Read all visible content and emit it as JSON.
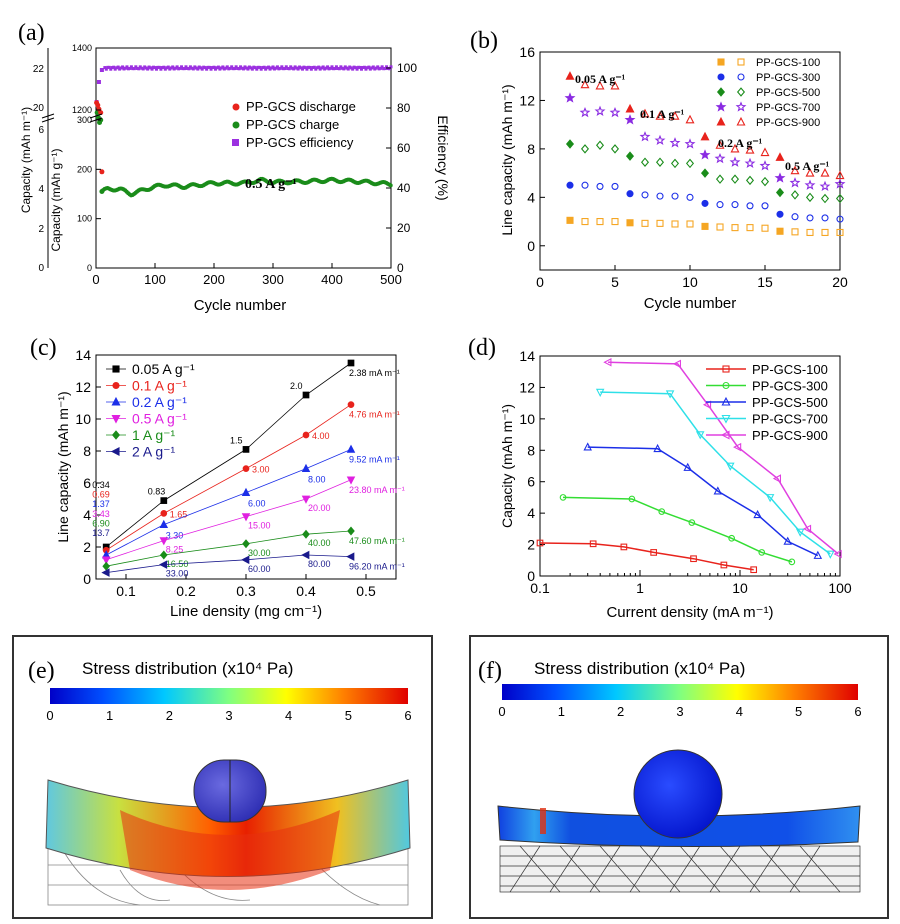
{
  "chart_data": [
    {
      "panel": "(a)",
      "type": "scatter",
      "xlabel": "Cycle number",
      "ylabel": "Capacity (mAh g⁻¹)",
      "ylabel_inner": "Capacity (mAh m⁻¹)",
      "ylabel_right": "Efficiency (%)",
      "xlim": [
        0,
        500
      ],
      "xticks": [
        "0",
        "100",
        "200",
        "300",
        "400",
        "500"
      ],
      "yticks_left": [
        "0",
        "100",
        "200",
        "300",
        "1200",
        "1400"
      ],
      "yticks_inner": [
        "0",
        "2",
        "4",
        "6",
        "20",
        "22"
      ],
      "yticks_right": [
        "0",
        "20",
        "40",
        "60",
        "80",
        "100"
      ],
      "annotation": "0.5 A g⁻¹",
      "legend": [
        "PP-GCS discharge",
        "PP-GCS charge",
        "PP-GCS efficiency"
      ],
      "colors": [
        "#e8231c",
        "#1a8c1a",
        "#9b30e0"
      ],
      "efficiency_x": [
        1,
        5,
        10,
        15,
        20,
        40,
        60,
        80,
        100,
        120,
        150,
        200,
        250,
        300,
        350,
        400,
        450,
        500
      ],
      "efficiency_y": [
        83,
        93,
        99,
        100,
        100,
        100,
        99.5,
        100,
        100.5,
        100,
        100,
        100,
        100,
        100,
        100,
        100,
        100,
        100
      ],
      "discharge_x": [
        1,
        3,
        5,
        8,
        10
      ],
      "discharge_y": [
        335,
        330,
        322,
        315,
        195
      ],
      "charge_x": [
        2,
        4,
        6,
        8,
        10,
        20,
        40,
        60,
        80,
        100,
        120,
        150,
        200,
        250,
        280,
        300,
        350,
        400,
        450,
        500
      ],
      "charge_y": [
        315,
        305,
        295,
        300,
        155,
        160,
        160,
        150,
        158,
        165,
        168,
        165,
        172,
        172,
        178,
        174,
        175,
        178,
        175,
        170
      ]
    },
    {
      "panel": "(b)",
      "type": "scatter",
      "xlabel": "Cycle number",
      "ylabel": "Line capacity (mAh m⁻¹)",
      "xlim": [
        0,
        20
      ],
      "ylim": [
        -2,
        16
      ],
      "xticks": [
        "0",
        "5",
        "10",
        "15",
        "20"
      ],
      "yticks": [
        "0",
        "4",
        "8",
        "12",
        "16"
      ],
      "annotations": [
        "0.05 A g⁻¹",
        "0.1 A g⁻¹",
        "0.2 A g⁻¹",
        "0.5 A g⁻¹"
      ],
      "x": [
        2,
        3,
        4,
        5,
        6,
        7,
        8,
        9,
        10,
        11,
        12,
        13,
        14,
        15,
        16,
        17,
        18,
        19,
        20
      ],
      "series": [
        {
          "name": "PP-GCS-100",
          "color": "#f5a623",
          "marker": "square",
          "values": [
            2.1,
            2.0,
            2.0,
            2.0,
            1.9,
            1.85,
            1.85,
            1.8,
            1.8,
            1.6,
            1.55,
            1.5,
            1.5,
            1.45,
            1.2,
            1.15,
            1.1,
            1.1,
            1.1
          ]
        },
        {
          "name": "PP-GCS-300",
          "color": "#1c2fe8",
          "marker": "circle",
          "values": [
            5.0,
            5.0,
            4.9,
            4.9,
            4.3,
            4.2,
            4.1,
            4.1,
            4.0,
            3.5,
            3.4,
            3.4,
            3.3,
            3.3,
            2.6,
            2.4,
            2.3,
            2.3,
            2.2
          ]
        },
        {
          "name": "PP-GCS-500",
          "color": "#1a8c1a",
          "marker": "diamond",
          "values": [
            8.4,
            8.0,
            8.3,
            8.0,
            7.4,
            6.9,
            6.9,
            6.8,
            6.8,
            6.0,
            5.5,
            5.5,
            5.4,
            5.3,
            4.4,
            4.2,
            4.0,
            3.9,
            3.9
          ]
        },
        {
          "name": "PP-GCS-700",
          "color": "#8a2be2",
          "marker": "star",
          "values": [
            12.2,
            11.0,
            11.1,
            11.0,
            10.4,
            9.0,
            8.7,
            8.5,
            8.4,
            7.5,
            7.2,
            6.9,
            6.8,
            6.6,
            5.6,
            5.2,
            5.0,
            4.9,
            5.1
          ]
        },
        {
          "name": "PP-GCS-900",
          "color": "#e8231c",
          "marker": "triangle",
          "values": [
            14.0,
            13.3,
            13.2,
            13.2,
            11.3,
            10.9,
            10.7,
            10.7,
            10.4,
            9.0,
            8.3,
            8.0,
            7.9,
            7.7,
            7.3,
            6.2,
            6.0,
            6.0,
            5.8
          ]
        }
      ]
    },
    {
      "panel": "(c)",
      "type": "line",
      "xlabel": "Line density (mg cm⁻¹)",
      "ylabel": "Line capacity (mAh m⁻¹)",
      "xlim": [
        0.05,
        0.55
      ],
      "ylim": [
        0,
        14
      ],
      "xticks": [
        "0.1",
        "0.2",
        "0.3",
        "0.4",
        "0.5"
      ],
      "yticks": [
        "0",
        "2",
        "4",
        "6",
        "8",
        "10",
        "12",
        "14"
      ],
      "x": [
        0.067,
        0.163,
        0.3,
        0.4,
        0.475
      ],
      "series": [
        {
          "name": "0.05 A g⁻¹",
          "color": "#000000",
          "marker": "square",
          "values": [
            2.0,
            4.9,
            8.1,
            11.5,
            13.5
          ],
          "labels": [
            "0.34",
            "0.83",
            "1.5",
            "2.0",
            "2.38 mA m⁻¹"
          ]
        },
        {
          "name": "0.1 A g⁻¹",
          "color": "#e8231c",
          "marker": "circle",
          "values": [
            1.8,
            4.1,
            6.9,
            9.0,
            10.9
          ],
          "labels": [
            "0.69",
            "1.65",
            "3.00",
            "4.00",
            "4.76 mA m⁻¹"
          ]
        },
        {
          "name": "0.2 A g⁻¹",
          "color": "#1c2fe8",
          "marker": "triangle",
          "values": [
            1.5,
            3.4,
            5.4,
            6.9,
            8.1
          ],
          "labels": [
            "1.37",
            "3.30",
            "6.00",
            "8.00",
            "9.52 mA m⁻¹"
          ]
        },
        {
          "name": "0.5 A g⁻¹",
          "color": "#e020e0",
          "marker": "triangle-down",
          "values": [
            1.2,
            2.4,
            3.9,
            5.0,
            6.2
          ],
          "labels": [
            "3.43",
            "8.25",
            "15.00",
            "20.00",
            "23.80 mA m⁻¹"
          ]
        },
        {
          "name": "1 A g⁻¹",
          "color": "#1a8c1a",
          "marker": "diamond",
          "values": [
            0.8,
            1.5,
            2.2,
            2.8,
            3.0
          ],
          "labels": [
            "6.90",
            "16.50",
            "30.00",
            "40.00",
            "47.60 mA m⁻¹"
          ]
        },
        {
          "name": "2 A g⁻¹",
          "color": "#1a1a8c",
          "marker": "triangle-left",
          "values": [
            0.4,
            0.9,
            1.2,
            1.5,
            1.4
          ],
          "labels": [
            "13.7",
            "33.00",
            "60.00",
            "80.00",
            "96.20 mA m⁻¹"
          ]
        }
      ]
    },
    {
      "panel": "(d)",
      "type": "line",
      "xscale": "log",
      "xlabel": "Current density (mA m⁻¹)",
      "ylabel": "Capacity (mAh m⁻¹)",
      "xlim": [
        0.1,
        100
      ],
      "ylim": [
        0,
        14
      ],
      "xticks": [
        "0.1",
        "1",
        "10",
        "100"
      ],
      "yticks": [
        "0",
        "2",
        "4",
        "6",
        "8",
        "10",
        "12",
        "14"
      ],
      "series": [
        {
          "name": "PP-GCS-100",
          "color": "#e8231c",
          "marker": "square",
          "x": [
            0.1,
            0.34,
            0.69,
            1.37,
            3.43,
            6.9,
            13.7
          ],
          "values": [
            2.1,
            2.05,
            1.85,
            1.5,
            1.1,
            0.7,
            0.4
          ]
        },
        {
          "name": "PP-GCS-300",
          "color": "#33dd33",
          "marker": "circle",
          "x": [
            0.17,
            0.83,
            1.65,
            3.3,
            8.25,
            16.5,
            33.0
          ],
          "values": [
            5.0,
            4.9,
            4.1,
            3.4,
            2.4,
            1.5,
            0.9
          ]
        },
        {
          "name": "PP-GCS-500",
          "color": "#1c2fe8",
          "marker": "triangle",
          "x": [
            0.3,
            1.5,
            3.0,
            6.0,
            15.0,
            30.0,
            60.0
          ],
          "values": [
            8.2,
            8.1,
            6.9,
            5.4,
            3.9,
            2.2,
            1.3
          ]
        },
        {
          "name": "PP-GCS-700",
          "color": "#2ee0e8",
          "marker": "triangle-down",
          "x": [
            0.4,
            2.0,
            4.0,
            8.0,
            20.0,
            40.0,
            80.0
          ],
          "values": [
            11.7,
            11.6,
            9.0,
            7.0,
            5.0,
            2.8,
            1.4
          ]
        },
        {
          "name": "PP-GCS-900",
          "color": "#e040e0",
          "marker": "triangle-left",
          "x": [
            0.48,
            2.38,
            4.76,
            9.52,
            23.8,
            47.6,
            96.2
          ],
          "values": [
            13.6,
            13.5,
            10.9,
            8.2,
            6.2,
            3.0,
            1.4
          ]
        }
      ]
    }
  ],
  "panel_e": {
    "label": "(e)",
    "title": "Stress distribution (x10⁴ Pa)",
    "scale_ticks": [
      "0",
      "1",
      "2",
      "3",
      "4",
      "5",
      "6"
    ]
  },
  "panel_f": {
    "label": "(f)",
    "title": "Stress distribution (x10⁴ Pa)",
    "scale_ticks": [
      "0",
      "1",
      "2",
      "3",
      "4",
      "5",
      "6"
    ]
  }
}
